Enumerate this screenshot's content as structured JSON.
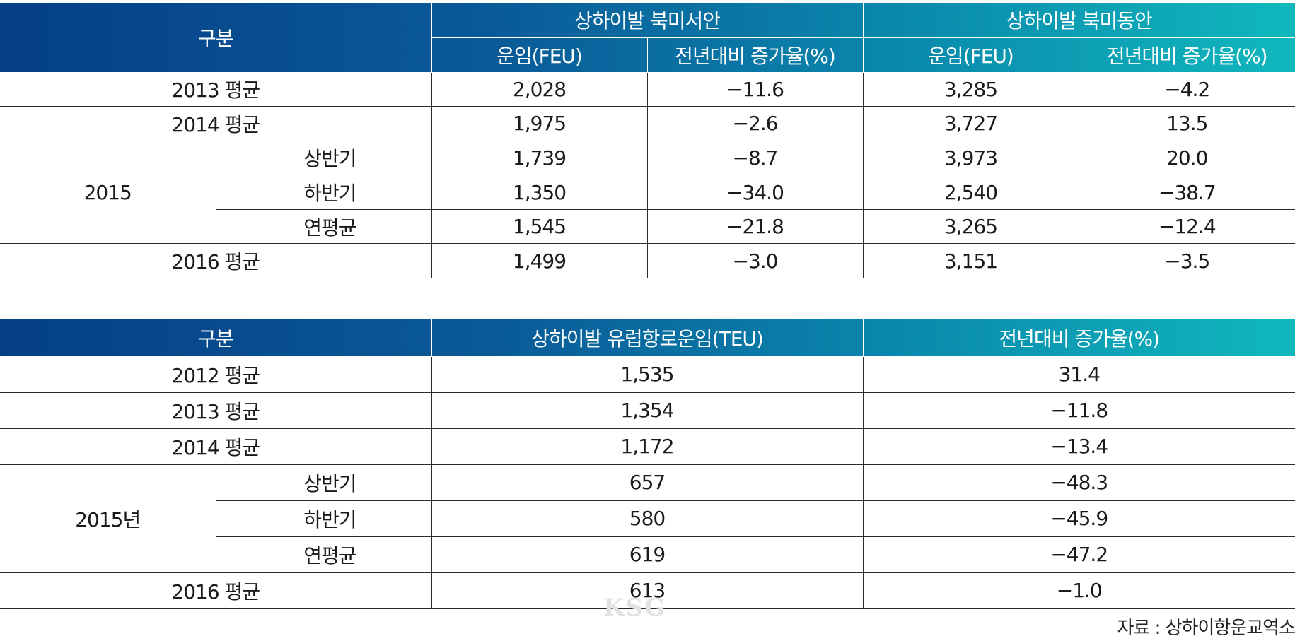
{
  "table1": {
    "header": {
      "category": "구분",
      "group_west": "상하이발 북미서안",
      "group_east": "상하이발 북미동안",
      "rate": "운임(FEU)",
      "yoy": "전년대비 증가율(%)"
    },
    "rows": [
      {
        "label": "2013 평균",
        "west_rate": "2,028",
        "west_yoy": "−11.6",
        "east_rate": "3,285",
        "east_yoy": "−4.2"
      },
      {
        "label": "2014 평균",
        "west_rate": "1,975",
        "west_yoy": "−2.6",
        "east_rate": "3,727",
        "east_yoy": "13.5"
      },
      {
        "year": "2015",
        "label": "상반기",
        "west_rate": "1,739",
        "west_yoy": "−8.7",
        "east_rate": "3,973",
        "east_yoy": "20.0"
      },
      {
        "label": "하반기",
        "west_rate": "1,350",
        "west_yoy": "−34.0",
        "east_rate": "2,540",
        "east_yoy": "−38.7"
      },
      {
        "label": "연평균",
        "west_rate": "1,545",
        "west_yoy": "−21.8",
        "east_rate": "3,265",
        "east_yoy": "−12.4"
      },
      {
        "label": "2016 평균",
        "west_rate": "1,499",
        "west_yoy": "−3.0",
        "east_rate": "3,151",
        "east_yoy": "−3.5"
      }
    ]
  },
  "table2": {
    "header": {
      "category": "구분",
      "rate": "상하이발 유럽항로운임(TEU)",
      "yoy": "전년대비 증가율(%)"
    },
    "rows": [
      {
        "label": "2012 평균",
        "rate": "1,535",
        "yoy": "31.4"
      },
      {
        "label": "2013 평균",
        "rate": "1,354",
        "yoy": "−11.8"
      },
      {
        "label": "2014 평균",
        "rate": "1,172",
        "yoy": "−13.4"
      },
      {
        "year": "2015년",
        "label": "상반기",
        "rate": "657",
        "yoy": "−48.3"
      },
      {
        "label": "하반기",
        "rate": "580",
        "yoy": "−45.9"
      },
      {
        "label": "연평균",
        "rate": "619",
        "yoy": "−47.2"
      },
      {
        "label": "2016 평균",
        "rate": "613",
        "yoy": "−1.0"
      }
    ]
  },
  "watermark": "KSG",
  "source": "자료 : 상하이항운교역소",
  "colors": {
    "header_start": "#063f86",
    "header_end": "#10b8bd"
  }
}
